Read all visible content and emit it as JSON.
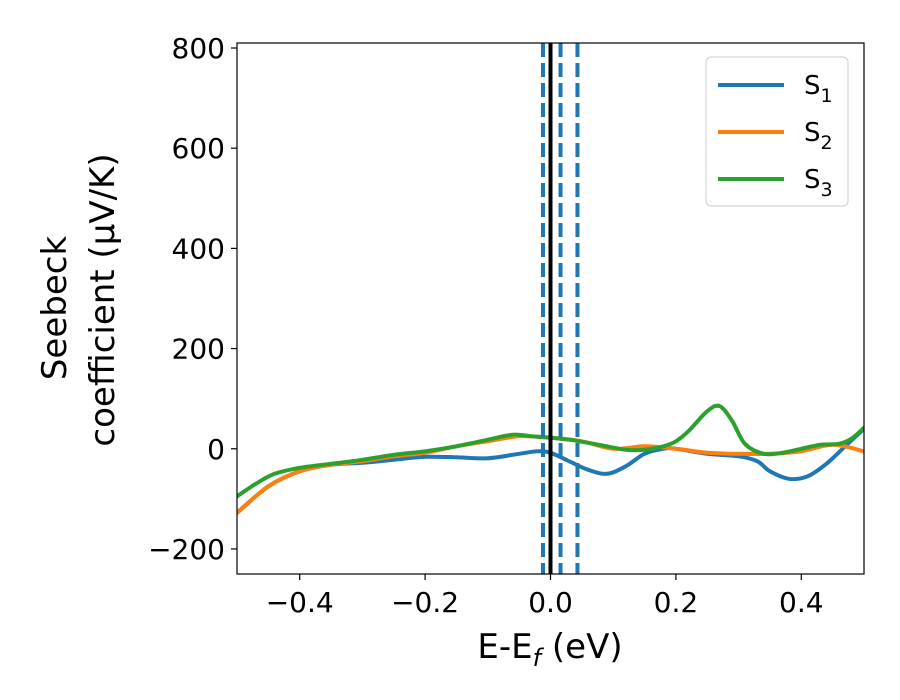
{
  "chart_data": {
    "type": "line",
    "xlabel": "E-E",
    "xlabel_sub": "f",
    "xlabel_unit": " (eV)",
    "ylabel_line1": "Seebeck",
    "ylabel_line2": "coefficient  (μV/K)",
    "xlim": [
      -0.5,
      0.5
    ],
    "ylim": [
      -250,
      810
    ],
    "xticks": [
      -0.4,
      -0.2,
      0.0,
      0.2,
      0.4
    ],
    "xtick_labels": [
      "−0.4",
      "−0.2",
      "0.0",
      "0.2",
      "0.4"
    ],
    "yticks": [
      -200,
      0,
      200,
      400,
      600,
      800
    ],
    "ytick_labels": [
      "−200",
      "0",
      "200",
      "400",
      "600",
      "800"
    ],
    "legend_position": "top-right",
    "vertical_lines": [
      {
        "x": 0.0,
        "color": "#000000",
        "style": "solid"
      },
      {
        "x": -0.012,
        "color": "#1f77b4",
        "style": "dashed"
      },
      {
        "x": 0.016,
        "color": "#1f77b4",
        "style": "dashed"
      },
      {
        "x": 0.043,
        "color": "#1f77b4",
        "style": "dashed"
      }
    ],
    "series": [
      {
        "name": "S",
        "subscript": "1",
        "color": "#1f77b4",
        "x": [
          -0.5,
          -0.45,
          -0.4,
          -0.35,
          -0.3,
          -0.25,
          -0.2,
          -0.15,
          -0.1,
          -0.05,
          -0.02,
          0.0,
          0.03,
          0.06,
          0.09,
          0.12,
          0.15,
          0.18,
          0.2,
          0.25,
          0.3,
          0.33,
          0.35,
          0.38,
          0.41,
          0.44,
          0.47,
          0.5
        ],
        "y": [
          -128,
          -75,
          -45,
          -32,
          -28,
          -22,
          -16,
          -17,
          -19,
          -10,
          -5,
          -8,
          -25,
          -42,
          -50,
          -35,
          -10,
          0,
          0,
          -10,
          -15,
          -25,
          -45,
          -60,
          -55,
          -30,
          5,
          40
        ]
      },
      {
        "name": "S",
        "subscript": "2",
        "color": "#ff7f0e",
        "x": [
          -0.5,
          -0.45,
          -0.4,
          -0.35,
          -0.3,
          -0.25,
          -0.2,
          -0.15,
          -0.1,
          -0.05,
          0.0,
          0.05,
          0.1,
          0.15,
          0.2,
          0.25,
          0.3,
          0.35,
          0.4,
          0.45,
          0.5
        ],
        "y": [
          -128,
          -75,
          -45,
          -32,
          -25,
          -15,
          -8,
          5,
          15,
          25,
          22,
          15,
          0,
          5,
          0,
          -8,
          -10,
          -10,
          -5,
          8,
          -5
        ]
      },
      {
        "name": "S",
        "subscript": "3",
        "color": "#2ca02c",
        "x": [
          -0.5,
          -0.47,
          -0.44,
          -0.4,
          -0.35,
          -0.3,
          -0.25,
          -0.2,
          -0.15,
          -0.1,
          -0.06,
          -0.03,
          0.0,
          0.03,
          0.06,
          0.09,
          0.12,
          0.15,
          0.18,
          0.2,
          0.22,
          0.25,
          0.27,
          0.29,
          0.31,
          0.34,
          0.37,
          0.4,
          0.43,
          0.46,
          0.48,
          0.5
        ],
        "y": [
          -95,
          -70,
          -50,
          -38,
          -30,
          -22,
          -12,
          -5,
          5,
          18,
          28,
          25,
          22,
          18,
          12,
          5,
          -2,
          -2,
          5,
          15,
          35,
          75,
          85,
          55,
          10,
          -10,
          -8,
          0,
          8,
          10,
          20,
          42
        ]
      }
    ]
  }
}
